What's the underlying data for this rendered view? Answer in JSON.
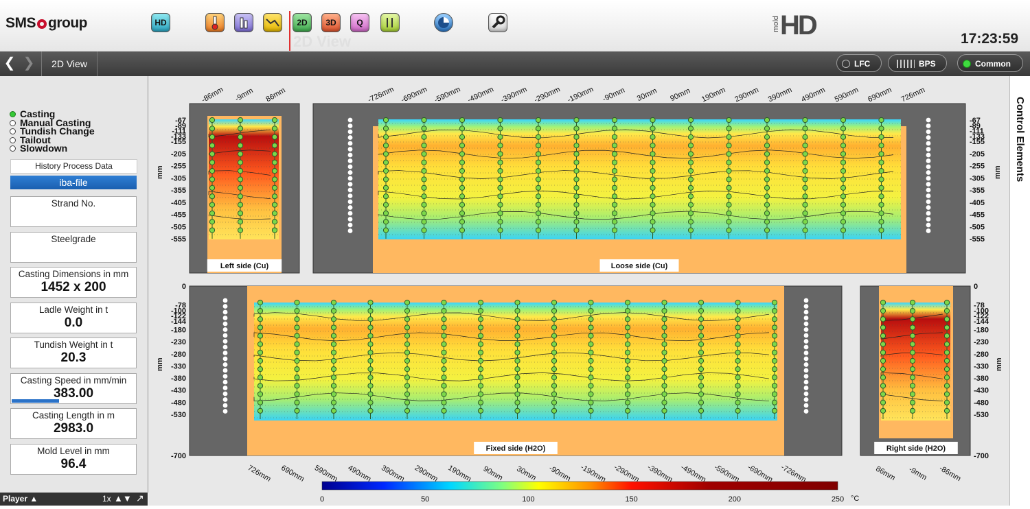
{
  "header": {
    "logo": "SMS group",
    "logo_left": "SMS",
    "logo_right": "group",
    "brand_small": "mold",
    "brand_large": "HD",
    "view_title": "2D View",
    "clock": "17:23:59",
    "toolbar_icons": [
      "hd-icon",
      "thermometer-icon",
      "bar-icon",
      "trend-icon",
      "2d-icon",
      "3d-icon",
      "quality-icon",
      "sensor-icon",
      "chart-pie-icon",
      "wrench-icon"
    ],
    "toolbar_labels": {
      "hd": "HD",
      "two_d": "2D",
      "three_d": "3D",
      "q": "Q"
    }
  },
  "navbar": {
    "breadcrumb": "2D View",
    "pills": [
      {
        "label": "LFC",
        "status": "off"
      },
      {
        "label": "BPS",
        "status": "off"
      },
      {
        "label": "Common",
        "status": "on"
      }
    ]
  },
  "left_panel": {
    "modes": [
      {
        "label": "Casting",
        "active": true
      },
      {
        "label": "Manual Casting",
        "active": false
      },
      {
        "label": "Tundish Change",
        "active": false
      },
      {
        "label": "Tailout",
        "active": false
      },
      {
        "label": "Slowdown",
        "active": false
      }
    ],
    "history_button": "History Process Data",
    "file_button": "iba-file",
    "info": [
      {
        "label": "Strand No.",
        "value": ""
      },
      {
        "label": "Steelgrade",
        "value": ""
      },
      {
        "label": "Casting Dimensions in mm",
        "value": "1452 x 200"
      },
      {
        "label": "Ladle Weight in t",
        "value": "0.0"
      },
      {
        "label": "Tundish Weight in t",
        "value": "20.3"
      },
      {
        "label": "Casting Speed in mm/min",
        "value": "383.00"
      },
      {
        "label": "Casting Length in m",
        "value": "2983.0"
      },
      {
        "label": "Mold Level in mm",
        "value": "96.4"
      }
    ],
    "casting_speed_fraction": 0.38
  },
  "player": {
    "label": "Player",
    "speed": "1x"
  },
  "right_rail": {
    "label": "Control Elements"
  },
  "plots": {
    "axis_unit": "mm",
    "top_ticks": [
      "-67",
      "-89",
      "-111",
      "-133",
      "-155",
      "-205",
      "-255",
      "-305",
      "-355",
      "-405",
      "-455",
      "-505",
      "-555"
    ],
    "bottom_ticks": [
      "0",
      "-78",
      "-100",
      "-122",
      "-144",
      "-180",
      "-230",
      "-280",
      "-330",
      "-380",
      "-430",
      "-480",
      "-530",
      "-700"
    ],
    "left_side": {
      "title": "Left side (Cu)",
      "cols": [
        "-86mm",
        "-9mm",
        "86mm"
      ]
    },
    "loose_side": {
      "title": "Loose side (Cu)",
      "cols": [
        "-726mm",
        "-690mm",
        "-590mm",
        "-490mm",
        "-390mm",
        "-290mm",
        "-190mm",
        "-90mm",
        "30mm",
        "90mm",
        "190mm",
        "290mm",
        "390mm",
        "490mm",
        "590mm",
        "690mm",
        "726mm"
      ]
    },
    "fixed_side": {
      "title": "Fixed side (H2O)",
      "cols": [
        "726mm",
        "690mm",
        "590mm",
        "490mm",
        "390mm",
        "290mm",
        "190mm",
        "90mm",
        "30mm",
        "-90mm",
        "-190mm",
        "-290mm",
        "-390mm",
        "-490mm",
        "-590mm",
        "-690mm",
        "-726mm"
      ]
    },
    "right_side": {
      "title": "Right side (H2O)",
      "cols": [
        "86mm",
        "-9mm",
        "-86mm"
      ]
    }
  },
  "colorbar": {
    "ticks": [
      "0",
      "50",
      "100",
      "150",
      "200",
      "250"
    ],
    "unit": "°C",
    "min": 0,
    "max": 250
  }
}
